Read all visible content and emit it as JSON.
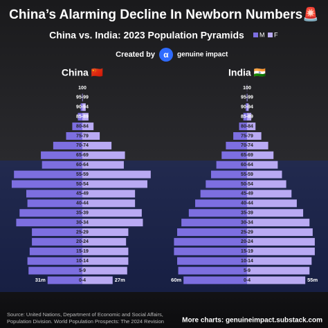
{
  "header": {
    "title": "China’s Alarming Decline In Newborn Numbers🚨",
    "subtitle": "China vs. India: 2023 Population Pyramids",
    "created_by": "Created by",
    "brand": "genuine impact"
  },
  "chart_data": [
    {
      "type": "pyramid",
      "title": "China 🇨🇳",
      "categories": [
        "100",
        "95-99",
        "90-94",
        "85-89",
        "80-84",
        "75-79",
        "70-74",
        "65-69",
        "60-64",
        "55-59",
        "50-54",
        "45-49",
        "40-44",
        "35-39",
        "30-34",
        "25-29",
        "20-24",
        "15-19",
        "10-14",
        "5-9",
        "0-4"
      ],
      "series": [
        {
          "name": "M",
          "color": "#7d6fe0",
          "values": [
            0.01,
            0.2,
            1.5,
            4,
            9,
            14.5,
            26,
            37,
            36,
            61,
            63,
            50,
            49,
            56,
            59,
            45,
            45,
            47,
            49,
            48,
            31
          ],
          "value_labels": [
            null,
            null,
            null,
            null,
            null,
            null,
            null,
            null,
            null,
            null,
            null,
            null,
            null,
            null,
            null,
            null,
            null,
            null,
            null,
            null,
            "31m"
          ]
        },
        {
          "name": "F",
          "color": "#b9aaf3",
          "values": [
            0.02,
            0.4,
            3,
            5.5,
            10,
            15.5,
            26,
            38,
            37,
            61,
            58,
            47,
            47,
            53,
            54,
            41,
            39,
            41,
            41,
            40,
            27
          ],
          "value_labels": [
            null,
            null,
            null,
            null,
            null,
            null,
            null,
            null,
            null,
            null,
            null,
            null,
            null,
            null,
            null,
            null,
            null,
            null,
            null,
            null,
            "27m"
          ]
        }
      ]
    },
    {
      "type": "pyramid",
      "title": "India 🇮🇳",
      "categories": [
        "100",
        "95-99",
        "90-94",
        "85-89",
        "80-84",
        "75-79",
        "70-74",
        "65-69",
        "60-64",
        "55-59",
        "50-54",
        "45-49",
        "40-44",
        "35-39",
        "30-34",
        "25-29",
        "20-24",
        "15-19",
        "10-14",
        "5-9",
        "0-4"
      ],
      "series": [
        {
          "name": "M",
          "color": "#7d6fe0",
          "values": [
            0.1,
            0.3,
            1.2,
            3.5,
            7.5,
            13,
            20,
            24,
            29,
            34,
            39,
            44,
            49,
            55,
            62,
            66,
            69,
            69,
            66,
            65,
            60
          ],
          "value_labels": [
            null,
            null,
            null,
            null,
            null,
            null,
            null,
            null,
            null,
            null,
            null,
            null,
            null,
            null,
            null,
            null,
            null,
            null,
            null,
            null,
            "60m"
          ]
        },
        {
          "name": "F",
          "color": "#b9aaf3",
          "values": [
            0.1,
            0.4,
            1.5,
            4,
            8,
            13.5,
            20,
            25,
            29,
            33,
            37,
            42,
            47,
            53,
            59,
            62,
            64,
            64,
            61,
            59,
            55
          ],
          "value_labels": [
            null,
            null,
            null,
            null,
            null,
            null,
            null,
            null,
            null,
            null,
            null,
            null,
            null,
            null,
            null,
            null,
            null,
            null,
            null,
            null,
            "55m"
          ]
        }
      ]
    }
  ],
  "footer": {
    "source": [
      "Source: United Nations, Department of Economic and Social Affairs,",
      "Population Division. World Population Prospects: The 2024 Revision"
    ],
    "more": "More charts: genuineimpact.substack.com"
  }
}
